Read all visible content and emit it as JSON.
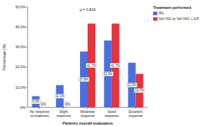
{
  "chart_data": {
    "type": "bar",
    "x_label": "Patients overall evaluation",
    "y_label": "Percentage (%)",
    "legend_title": "Treatment performed",
    "annotations": [
      "p = 0.833"
    ],
    "categories": [
      "No response to treatment",
      "Slight response",
      "Moderate response",
      "Good response",
      "Excellent response"
    ],
    "series": [
      {
        "name": "IPL",
        "color": "#4a6fe0",
        "values": [
          5.6,
          11.1,
          27.8,
          33.3,
          22.2
        ],
        "value_labels": [
          "5.6%",
          "11.1%",
          "27.8%",
          "33.3%",
          "22.2%"
        ]
      },
      {
        "name": "Nd:YAG or Nd:YAG + ILP",
        "color": "#e8323c",
        "values": [
          0,
          0,
          41.7,
          41.7,
          16.7
        ],
        "value_labels": [
          "0%",
          "0%",
          "41.7%",
          "41.7%",
          "16.7%"
        ]
      }
    ],
    "ylim": [
      0,
      50
    ],
    "yticks": [
      {
        "value": 0,
        "label": ".0%"
      },
      {
        "value": 10,
        "label": "10.0%"
      },
      {
        "value": 20,
        "label": "20.0%"
      },
      {
        "value": 30,
        "label": "30.0%"
      },
      {
        "value": 40,
        "label": "40.0%"
      },
      {
        "value": 50,
        "label": "50.0%"
      }
    ],
    "grid": false,
    "legend": "right",
    "data_labels": true
  }
}
